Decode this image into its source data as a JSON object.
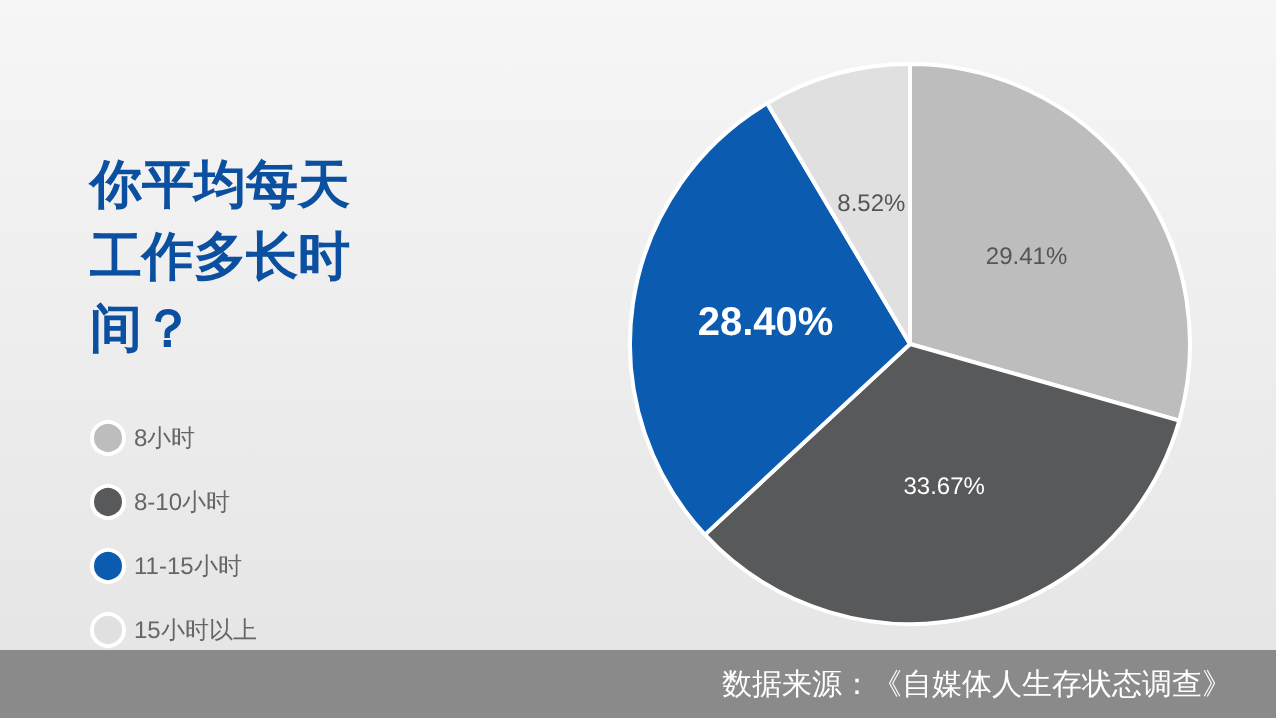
{
  "chart_data": {
    "type": "pie",
    "title": "你平均每天工作多长时间？",
    "categories": [
      "8小时",
      "8-10小时",
      "11-15小时",
      "15小时以上"
    ],
    "values": [
      29.41,
      33.67,
      28.4,
      8.52
    ],
    "value_labels": [
      "29.41%",
      "33.67%",
      "28.40%",
      "8.52%"
    ],
    "colors": [
      "#bdbdbd",
      "#58595b",
      "#0b5bb0",
      "#e0e0e0"
    ],
    "legend": "left",
    "annotations": [
      "数据来源：《自媒体人生存状态调查》"
    ]
  }
}
